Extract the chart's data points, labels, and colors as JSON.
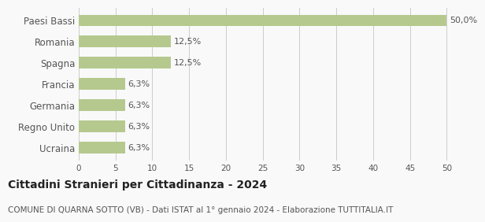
{
  "categories": [
    "Ucraina",
    "Regno Unito",
    "Germania",
    "Francia",
    "Spagna",
    "Romania",
    "Paesi Bassi"
  ],
  "values": [
    6.3,
    6.3,
    6.3,
    6.3,
    12.5,
    12.5,
    50.0
  ],
  "labels": [
    "6,3%",
    "6,3%",
    "6,3%",
    "6,3%",
    "12,5%",
    "12,5%",
    "50,0%"
  ],
  "bar_color": "#b5c98e",
  "background_color": "#f9f9f9",
  "xlim": [
    0,
    52
  ],
  "xticks": [
    0,
    5,
    10,
    15,
    20,
    25,
    30,
    35,
    40,
    45,
    50
  ],
  "title": "Cittadini Stranieri per Cittadinanza - 2024",
  "subtitle": "COMUNE DI QUARNA SOTTO (VB) - Dati ISTAT al 1° gennaio 2024 - Elaborazione TUTTITALIA.IT",
  "title_fontsize": 10,
  "subtitle_fontsize": 7.5,
  "label_fontsize": 8,
  "ytick_fontsize": 8.5,
  "xtick_fontsize": 7.5,
  "grid_color": "#cccccc",
  "text_color": "#555555",
  "title_color": "#222222"
}
